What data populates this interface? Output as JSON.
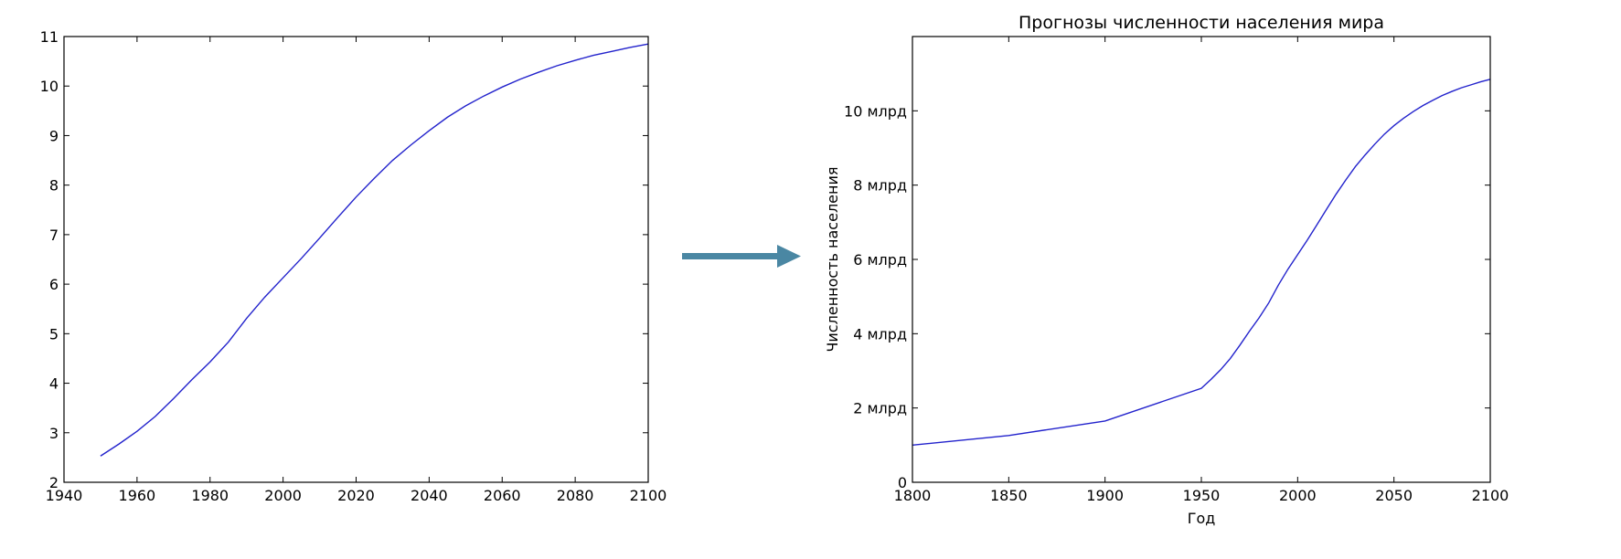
{
  "chart_data": [
    {
      "type": "line",
      "title": "",
      "xlabel": "",
      "ylabel": "",
      "xlim": [
        1940,
        2100
      ],
      "ylim": [
        2,
        11
      ],
      "xticks": [
        1940,
        1960,
        1980,
        2000,
        2020,
        2040,
        2060,
        2080,
        2100
      ],
      "yticks": [
        2,
        3,
        4,
        5,
        6,
        7,
        8,
        9,
        10,
        11
      ],
      "ytick_labels": [
        "2",
        "3",
        "4",
        "5",
        "6",
        "7",
        "8",
        "9",
        "10",
        "11"
      ],
      "grid": false,
      "series": [
        {
          "color": "#2222cc",
          "x": [
            1950,
            1955,
            1960,
            1965,
            1970,
            1975,
            1980,
            1985,
            1990,
            1995,
            2000,
            2005,
            2010,
            2015,
            2020,
            2025,
            2030,
            2035,
            2040,
            2045,
            2050,
            2055,
            2060,
            2065,
            2070,
            2075,
            2080,
            2085,
            2090,
            2095,
            2100
          ],
          "y": [
            2.53,
            2.77,
            3.03,
            3.33,
            3.69,
            4.07,
            4.43,
            4.83,
            5.31,
            5.74,
            6.13,
            6.52,
            6.93,
            7.35,
            7.76,
            8.14,
            8.5,
            8.81,
            9.1,
            9.37,
            9.6,
            9.8,
            9.98,
            10.14,
            10.28,
            10.41,
            10.52,
            10.62,
            10.7,
            10.78,
            10.85
          ]
        }
      ]
    },
    {
      "type": "line",
      "title": "Прогнозы численности населения мира",
      "xlabel": "Год",
      "ylabel": "Численность населения",
      "xlim": [
        1800,
        2100
      ],
      "ylim": [
        0,
        12
      ],
      "xticks": [
        1800,
        1850,
        1900,
        1950,
        2000,
        2050,
        2100
      ],
      "yticks": [
        0,
        2,
        4,
        6,
        8,
        10
      ],
      "ytick_labels": [
        "0",
        "2 млрд",
        "4 млрд",
        "6 млрд",
        "8 млрд",
        "10 млрд"
      ],
      "grid": false,
      "series": [
        {
          "color": "#2222cc",
          "x": [
            1800,
            1850,
            1900,
            1950,
            1955,
            1960,
            1965,
            1970,
            1975,
            1980,
            1985,
            1990,
            1995,
            2000,
            2005,
            2010,
            2015,
            2020,
            2025,
            2030,
            2035,
            2040,
            2045,
            2050,
            2055,
            2060,
            2065,
            2070,
            2075,
            2080,
            2085,
            2090,
            2095,
            2100
          ],
          "y": [
            1.0,
            1.26,
            1.65,
            2.53,
            2.77,
            3.03,
            3.33,
            3.69,
            4.07,
            4.43,
            4.83,
            5.31,
            5.74,
            6.13,
            6.52,
            6.93,
            7.35,
            7.76,
            8.14,
            8.5,
            8.81,
            9.1,
            9.37,
            9.6,
            9.8,
            9.98,
            10.14,
            10.28,
            10.41,
            10.52,
            10.62,
            10.7,
            10.78,
            10.85
          ]
        }
      ]
    }
  ],
  "arrow": {
    "color": "#4a87a3",
    "icon": "arrow-right-icon"
  }
}
